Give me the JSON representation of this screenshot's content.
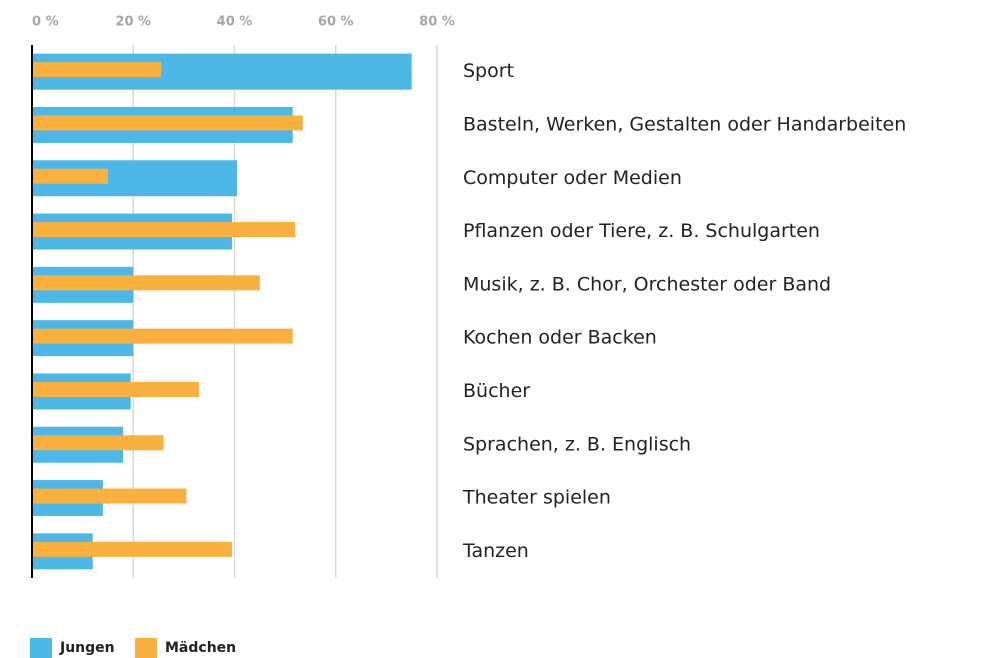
{
  "chart_data": {
    "type": "bar",
    "orientation": "horizontal",
    "categories": [
      "Sport",
      "Basteln, Werken, Gestalten oder Handarbeiten",
      "Computer oder Medien",
      "Pflanzen oder Tiere, z. B. Schulgarten",
      "Musik, z. B. Chor, Orchester oder Band",
      "Kochen oder Backen",
      "Bücher",
      "Sprachen, z. B. Englisch",
      "Theater spielen",
      "Tanzen"
    ],
    "series": [
      {
        "name": "Jungen",
        "color": "#4cb8e8",
        "values": [
          75,
          51.5,
          40.5,
          39.5,
          20,
          20,
          19.5,
          18,
          14,
          12
        ]
      },
      {
        "name": "Mädchen",
        "color": "#f9b03f",
        "values": [
          25.5,
          53.5,
          15,
          52,
          45,
          51.5,
          33,
          26,
          30.5,
          39.5
        ]
      }
    ],
    "xlim": [
      0,
      80
    ],
    "xticks": [
      {
        "value": 0,
        "label": "0 %"
      },
      {
        "value": 20,
        "label": "20 %"
      },
      {
        "value": 40,
        "label": "40 %"
      },
      {
        "value": 60,
        "label": "60 %"
      },
      {
        "value": 80,
        "label": "80 %"
      }
    ],
    "grid": true,
    "legend": "bottom-left"
  }
}
